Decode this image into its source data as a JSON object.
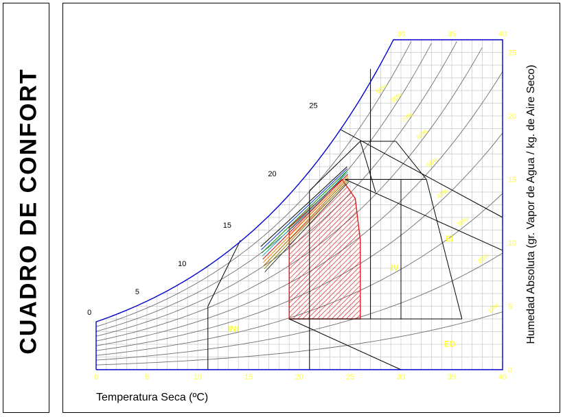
{
  "side_title": "CUADRO DE CONFORT",
  "colors": {
    "saturation": "#0000cc",
    "grid": "#c8c8c8",
    "curves": "#6e6e6e",
    "zone_fill": "#d81e1e",
    "labels": "#ffff33",
    "lines": "#000000"
  },
  "chart_data": {
    "type": "psychrometric",
    "xlabel": "Temperatura Seca (ºC)",
    "ylabel": "Humedad Absoluta (gr. Vapor de Agua / kg. de Aire Seco)",
    "xlim": [
      0,
      40
    ],
    "ylim": [
      0,
      26
    ],
    "x_ticks": [
      "0",
      "5",
      "10",
      "15",
      "20",
      "25",
      "30",
      "35",
      "40"
    ],
    "y_ticks": [
      "0",
      "5",
      "10",
      "15",
      "20",
      "25"
    ],
    "top_ticks": [
      "30",
      "35",
      "40"
    ],
    "saturation_labels": [
      "0",
      "5",
      "10",
      "15",
      "20",
      "25"
    ],
    "rh_labels": [
      "90%",
      "80%",
      "70%",
      "60%",
      "50%",
      "40%",
      "30%",
      "20%",
      "10%"
    ],
    "zone_labels": [
      "INI",
      "IV",
      "EI",
      "ED"
    ],
    "comfort_zone": [
      [
        19,
        4
      ],
      [
        26,
        4
      ],
      [
        26,
        10.2
      ],
      [
        25.5,
        13.5
      ],
      [
        24.2,
        15
      ],
      [
        19,
        11.2
      ]
    ]
  }
}
